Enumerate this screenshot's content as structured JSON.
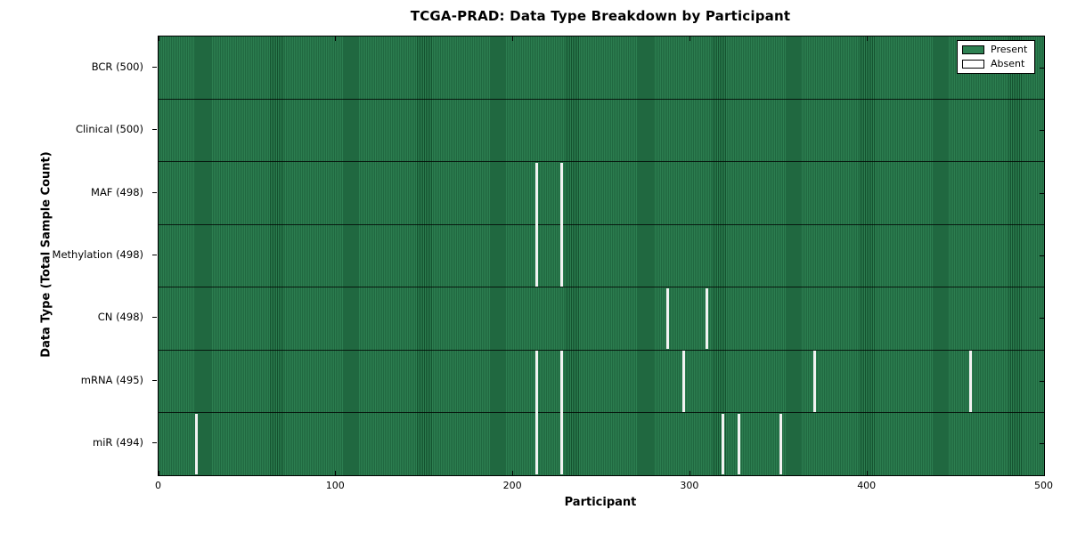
{
  "chart_data": {
    "type": "heatmap",
    "title": "TCGA-PRAD: Data Type Breakdown by Participant",
    "xlabel": "Participant",
    "ylabel": "Data Type (Total Sample Count)",
    "x_range": [
      0,
      500
    ],
    "x_ticks": [
      0,
      100,
      200,
      300,
      400,
      500
    ],
    "n_participants": 500,
    "grid": "per-participant vertical cell edges",
    "legend_position": "upper right",
    "legend": [
      {
        "label": "Present",
        "color": "#2e8152"
      },
      {
        "label": "Absent",
        "color": "#ffffff"
      }
    ],
    "colors": {
      "present_fill": "#2c7e50",
      "cell_edge_dark": "#14522f",
      "absent_fill": "#f2f2f2",
      "axis": "#000000"
    },
    "rows": [
      {
        "label": "BCR (500)",
        "data_type": "BCR",
        "total": 500,
        "absent_participants": []
      },
      {
        "label": "Clinical (500)",
        "data_type": "Clinical",
        "total": 500,
        "absent_participants": []
      },
      {
        "label": "MAF (498)",
        "data_type": "MAF",
        "total": 498,
        "absent_participants": [
          213,
          227
        ]
      },
      {
        "label": "Methylation (498)",
        "data_type": "Methylation",
        "total": 498,
        "absent_participants": [
          213,
          227
        ]
      },
      {
        "label": "CN (498)",
        "data_type": "CN",
        "total": 498,
        "absent_participants": [
          287,
          309
        ]
      },
      {
        "label": "mRNA (495)",
        "data_type": "mRNA",
        "total": 495,
        "absent_participants": [
          213,
          227,
          296,
          370,
          458
        ]
      },
      {
        "label": "miR (494)",
        "data_type": "miR",
        "total": 494,
        "absent_participants": [
          21,
          213,
          227,
          318,
          327,
          351
        ]
      }
    ]
  }
}
